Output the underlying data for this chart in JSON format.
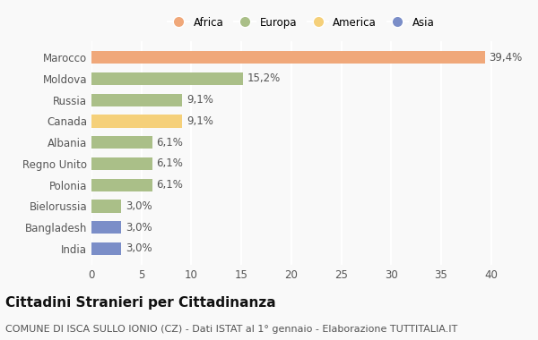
{
  "categories": [
    "Marocco",
    "Moldova",
    "Russia",
    "Canada",
    "Albania",
    "Regno Unito",
    "Polonia",
    "Bielorussia",
    "Bangladesh",
    "India"
  ],
  "values": [
    39.4,
    15.2,
    9.1,
    9.1,
    6.1,
    6.1,
    6.1,
    3.0,
    3.0,
    3.0
  ],
  "labels": [
    "39,4%",
    "15,2%",
    "9,1%",
    "9,1%",
    "6,1%",
    "6,1%",
    "6,1%",
    "3,0%",
    "3,0%",
    "3,0%"
  ],
  "colors": [
    "#F0A87A",
    "#AABF88",
    "#AABF88",
    "#F5D07A",
    "#AABF88",
    "#AABF88",
    "#AABF88",
    "#AABF88",
    "#7B8EC8",
    "#7B8EC8"
  ],
  "legend": [
    {
      "label": "Africa",
      "color": "#F0A87A"
    },
    {
      "label": "Europa",
      "color": "#AABF88"
    },
    {
      "label": "America",
      "color": "#F5D07A"
    },
    {
      "label": "Asia",
      "color": "#7B8EC8"
    }
  ],
  "xlim": [
    0,
    42
  ],
  "xticks": [
    0,
    5,
    10,
    15,
    20,
    25,
    30,
    35,
    40
  ],
  "title": "Cittadini Stranieri per Cittadinanza",
  "subtitle": "COMUNE DI ISCA SULLO IONIO (CZ) - Dati ISTAT al 1° gennaio - Elaborazione TUTTITALIA.IT",
  "background_color": "#f9f9f9",
  "grid_color": "#ffffff",
  "title_fontsize": 11,
  "subtitle_fontsize": 8,
  "label_fontsize": 8.5,
  "tick_fontsize": 8.5
}
